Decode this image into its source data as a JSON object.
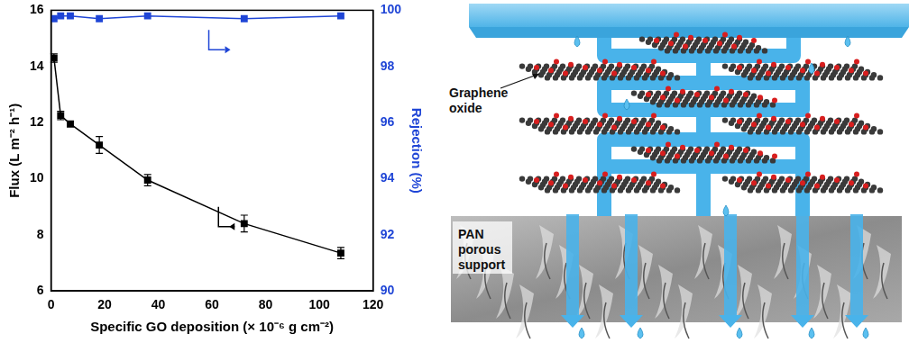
{
  "chart_data": {
    "type": "scatter",
    "x_label": "Specific GO deposition (× 10⁻⁶ g cm⁻²)",
    "y_label": "Flux (L m⁻² h⁻¹)",
    "y2_label": "Rejection (%)",
    "xlim": [
      0,
      120
    ],
    "xticks": [
      0,
      20,
      40,
      60,
      80,
      100,
      120
    ],
    "ylim": [
      6,
      16
    ],
    "yticks": [
      6,
      8,
      10,
      12,
      14,
      16
    ],
    "y2lim": [
      90,
      100
    ],
    "y2ticks": [
      90,
      92,
      94,
      96,
      98,
      100
    ],
    "grid": false,
    "series": [
      {
        "color": "#000000",
        "marker": "square",
        "line_style": "solid",
        "x": [
          1.1,
          3.6,
          7.2,
          18,
          36,
          72,
          108
        ],
        "values": [
          14.3,
          12.25,
          11.95,
          11.2,
          9.95,
          8.4,
          7.35
        ],
        "errors": [
          0.15,
          0.15,
          0.1,
          0.3,
          0.2,
          0.3,
          0.2
        ]
      },
      {
        "color": "#1f45d6",
        "marker": "square",
        "line_style": "solid",
        "axis": "y2",
        "x": [
          1.1,
          3.6,
          7.2,
          18,
          36,
          72,
          108
        ],
        "values": [
          99.7,
          99.8,
          99.8,
          99.7,
          99.8,
          99.7,
          99.8
        ]
      }
    ]
  },
  "diagram": {
    "layer_label": "Graphene oxide",
    "support_label": "PAN porous support"
  }
}
